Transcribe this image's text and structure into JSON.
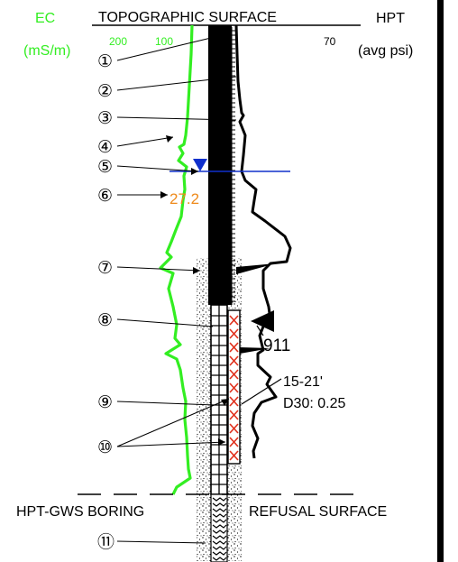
{
  "header": {
    "ec_label": "EC",
    "ec_units": "(mS/m)",
    "surface_label": "TOPOGRAPHIC SURFACE",
    "hpt_label": "HPT",
    "hpt_units": "(avg psi)",
    "ec_ticks": [
      "200",
      "100"
    ],
    "hpt_tick": "70"
  },
  "callouts": [
    "①",
    "②",
    "③",
    "④",
    "⑤",
    "⑥",
    "⑦",
    "⑧",
    "⑨",
    "⑩",
    "⑪"
  ],
  "annotations": {
    "ec_value": "27.2",
    "hpt_value": "911",
    "screen_interval": "15-21'",
    "d30": "D30: 0.25"
  },
  "footer": {
    "boring_label": "HPT-GWS BORING",
    "refusal_label": "REFUSAL SURFACE"
  },
  "colors": {
    "ec_trace": "#33ee22",
    "water_table": "#1030cc",
    "highlight_value": "#ee8a1c",
    "screen_x": "#e0301c",
    "text": "#000000"
  }
}
